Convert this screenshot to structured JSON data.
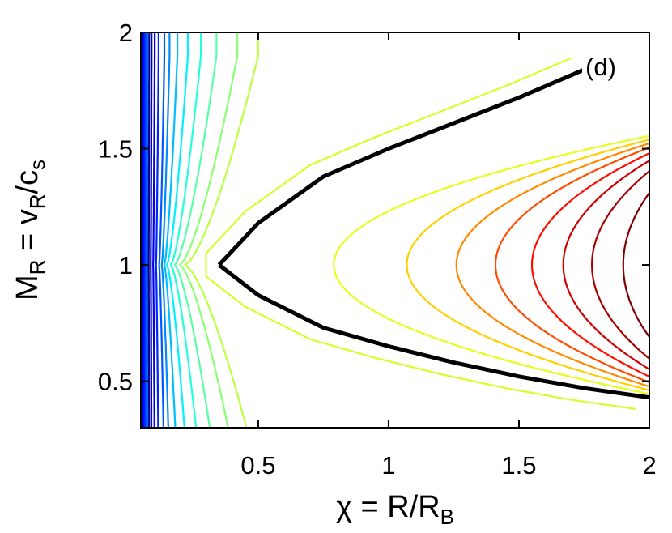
{
  "chart_data": {
    "type": "line",
    "subtype": "contour",
    "panel_label": "(d)",
    "xlabel": {
      "main": "χ = R/R",
      "sub": "B"
    },
    "ylabel": {
      "parts": [
        {
          "text": "M",
          "sub": false
        },
        {
          "text": "R",
          "sub": true
        },
        {
          "text": " = v",
          "sub": false
        },
        {
          "text": "R",
          "sub": true
        },
        {
          "text": "/c",
          "sub": false
        },
        {
          "text": "s",
          "sub": true
        }
      ]
    },
    "xlim": [
      0.05,
      2
    ],
    "ylim": [
      0.3,
      2
    ],
    "x_ticks": [
      0.5,
      1,
      1.5,
      2
    ],
    "y_ticks": [
      0.5,
      1,
      1.5,
      2
    ],
    "x_tick_labels": [
      "0.5",
      "1",
      "1.5",
      "2"
    ],
    "y_tick_labels": [
      "0.5",
      "1",
      "1.5",
      "2"
    ],
    "grid": false,
    "colormap": "jet",
    "critical_point": {
      "x": 0.35,
      "y": 1.0
    },
    "critical_curve_color": "#000000",
    "critical_curve": {
      "upper": [
        [
          0.35,
          1.0
        ],
        [
          0.5,
          1.18
        ],
        [
          0.75,
          1.38
        ],
        [
          1.0,
          1.5
        ],
        [
          1.25,
          1.61
        ],
        [
          1.5,
          1.72
        ],
        [
          1.75,
          1.84
        ]
      ],
      "lower": [
        [
          0.35,
          1.0
        ],
        [
          0.5,
          0.87
        ],
        [
          0.75,
          0.73
        ],
        [
          1.0,
          0.65
        ],
        [
          1.25,
          0.58
        ],
        [
          1.5,
          0.52
        ],
        [
          1.75,
          0.47
        ],
        [
          2.0,
          0.43
        ]
      ]
    },
    "closed_contours": [
      {
        "vertex": 0.79,
        "rank": 0.6
      },
      {
        "vertex": 1.07,
        "rank": 0.67
      },
      {
        "vertex": 1.26,
        "rank": 0.74
      },
      {
        "vertex": 1.41,
        "rank": 0.8
      },
      {
        "vertex": 1.55,
        "rank": 0.86
      },
      {
        "vertex": 1.67,
        "rank": 0.92
      },
      {
        "vertex": 1.78,
        "rank": 0.96
      },
      {
        "vertex": 1.9,
        "rank": 1.0
      }
    ],
    "open_contours": [
      {
        "x_mid": 0.22,
        "x_right": 0.5,
        "rank": 0.56
      },
      {
        "x_mid": 0.2,
        "x_right": 0.42,
        "rank": 0.51
      },
      {
        "x_mid": 0.18,
        "x_right": 0.34,
        "rank": 0.46
      },
      {
        "x_mid": 0.165,
        "x_right": 0.28,
        "rank": 0.41
      },
      {
        "x_mid": 0.15,
        "x_right": 0.23,
        "rank": 0.36
      },
      {
        "x_mid": 0.14,
        "x_right": 0.19,
        "rank": 0.31
      },
      {
        "x_mid": 0.13,
        "x_right": 0.16,
        "rank": 0.26
      },
      {
        "x_mid": 0.12,
        "x_right": 0.14,
        "rank": 0.21
      },
      {
        "x_mid": 0.108,
        "x_right": 0.118,
        "rank": 0.16
      },
      {
        "x_mid": 0.097,
        "x_right": 0.103,
        "rank": 0.11
      },
      {
        "x_mid": 0.088,
        "x_right": 0.091,
        "rank": 0.06
      },
      {
        "x_mid": 0.08,
        "x_right": 0.082,
        "rank": 0.01
      }
    ]
  }
}
